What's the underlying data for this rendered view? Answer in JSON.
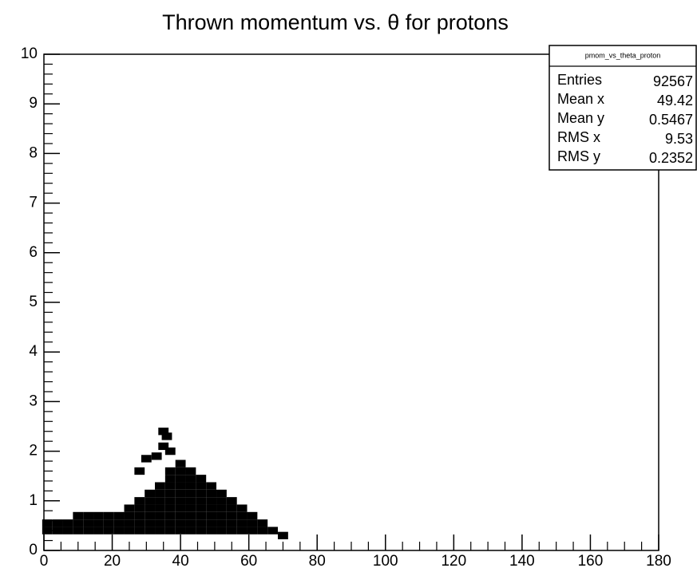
{
  "chart_data": {
    "type": "scatter",
    "title": "Thrown momentum vs. θ for protons",
    "xlim": [
      0,
      180
    ],
    "xticks": [
      0,
      20,
      40,
      60,
      80,
      100,
      120,
      140,
      160,
      180
    ],
    "ylim": [
      0,
      10
    ],
    "yticks": [
      0,
      1,
      2,
      3,
      4,
      5,
      6,
      7,
      8,
      9,
      10
    ],
    "color": "#000000",
    "x": [
      1,
      1,
      4,
      4,
      7,
      7,
      10,
      10,
      10,
      13,
      13,
      13,
      16,
      16,
      16,
      19,
      19,
      19,
      22,
      22,
      22,
      25,
      25,
      25,
      25,
      28,
      28,
      28,
      28,
      28,
      31,
      31,
      31,
      31,
      31,
      31,
      34,
      34,
      34,
      34,
      34,
      34,
      34,
      37,
      37,
      37,
      37,
      37,
      37,
      37,
      37,
      37,
      40,
      40,
      40,
      40,
      40,
      40,
      40,
      40,
      40,
      40,
      43,
      43,
      43,
      43,
      43,
      43,
      43,
      43,
      43,
      46,
      46,
      46,
      46,
      46,
      46,
      46,
      46,
      49,
      49,
      49,
      49,
      49,
      49,
      49,
      52,
      52,
      52,
      52,
      52,
      52,
      55,
      55,
      55,
      55,
      55,
      58,
      58,
      58,
      58,
      61,
      61,
      61,
      64,
      64,
      67,
      70,
      35,
      36,
      35,
      33,
      30,
      37,
      28
    ],
    "values": [
      0.4,
      0.55,
      0.4,
      0.55,
      0.4,
      0.55,
      0.4,
      0.55,
      0.7,
      0.4,
      0.55,
      0.7,
      0.4,
      0.55,
      0.7,
      0.4,
      0.55,
      0.7,
      0.4,
      0.55,
      0.7,
      0.4,
      0.55,
      0.7,
      0.85,
      0.4,
      0.55,
      0.7,
      0.85,
      1.0,
      0.4,
      0.55,
      0.7,
      0.85,
      1.0,
      1.15,
      0.4,
      0.55,
      0.7,
      0.85,
      1.0,
      1.15,
      1.3,
      0.4,
      0.55,
      0.7,
      0.85,
      1.0,
      1.15,
      1.3,
      1.45,
      1.6,
      0.4,
      0.55,
      0.7,
      0.85,
      1.0,
      1.15,
      1.3,
      1.45,
      1.6,
      1.75,
      0.4,
      0.55,
      0.7,
      0.85,
      1.0,
      1.15,
      1.3,
      1.45,
      1.6,
      0.4,
      0.55,
      0.7,
      0.85,
      1.0,
      1.15,
      1.3,
      1.45,
      0.4,
      0.55,
      0.7,
      0.85,
      1.0,
      1.15,
      1.3,
      0.4,
      0.55,
      0.7,
      0.85,
      1.0,
      1.15,
      0.4,
      0.55,
      0.7,
      0.85,
      1.0,
      0.4,
      0.55,
      0.7,
      0.85,
      0.4,
      0.55,
      0.7,
      0.4,
      0.55,
      0.4,
      0.3,
      2.4,
      2.3,
      2.1,
      1.9,
      1.85,
      2.0,
      1.6
    ],
    "stats": {
      "title": "pmom_vs_theta_proton",
      "rows": [
        [
          "Entries",
          92567
        ],
        [
          "Mean x",
          49.42
        ],
        [
          "Mean y",
          0.5467
        ],
        [
          "RMS x",
          9.53
        ],
        [
          "RMS y",
          0.2352
        ]
      ]
    }
  }
}
